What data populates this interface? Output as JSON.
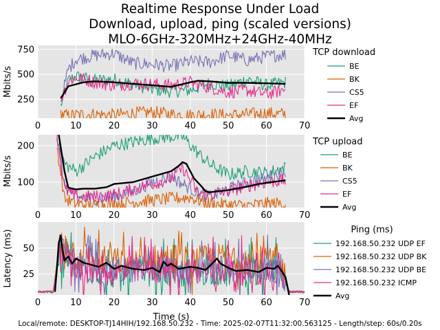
{
  "chart_data": {
    "type": "line",
    "title": [
      "Realtime Response Under Load",
      "Download, upload, ping (scaled versions)",
      "MLO-6GHz-320MHz+24GHz-40MHz"
    ],
    "footer": "Local/remote: DESKTOP-TJ14HIH/192.168.50.232 - Time: 2025-02-07T11:32:00.563125 - Length/step: 60s/0.20s",
    "colors": {
      "BE": "#1b9e77",
      "BK": "#d95f02",
      "CS5": "#7570b3",
      "EF": "#e7298a",
      "Avg": "#000000"
    },
    "panels": [
      {
        "name": "download",
        "ylabel": "Mbits/s",
        "xlabel": "",
        "xlim": [
          0,
          70
        ],
        "ylim": [
          60,
          790
        ],
        "xticks": [
          0,
          10,
          20,
          30,
          40,
          50,
          60,
          70
        ],
        "yticks": [
          250,
          500,
          750
        ],
        "legend_title": "TCP download",
        "series": [
          {
            "name": "BE",
            "color": "#1b9e77",
            "x": [
              6,
              8,
              10,
              15,
              20,
              25,
              30,
              35,
              40,
              45,
              50,
              55,
              60,
              65
            ],
            "y": [
              180,
              440,
              480,
              440,
              450,
              400,
              350,
              330,
              340,
              410,
              380,
              450,
              390,
              420
            ]
          },
          {
            "name": "BK",
            "color": "#d95f02",
            "x": [
              6,
              8,
              10,
              15,
              20,
              25,
              30,
              35,
              40,
              45,
              50,
              55,
              60,
              65
            ],
            "y": [
              110,
              80,
              95,
              100,
              90,
              110,
              120,
              100,
              90,
              100,
              90,
              100,
              110,
              100
            ]
          },
          {
            "name": "CS5",
            "color": "#7570b3",
            "x": [
              6,
              8,
              10,
              15,
              20,
              25,
              30,
              35,
              40,
              45,
              50,
              55,
              60,
              65
            ],
            "y": [
              220,
              550,
              650,
              690,
              710,
              610,
              600,
              580,
              630,
              620,
              690,
              640,
              680,
              700
            ]
          },
          {
            "name": "EF",
            "color": "#e7298a",
            "x": [
              6,
              8,
              10,
              15,
              20,
              25,
              30,
              35,
              40,
              45,
              50,
              55,
              60,
              65
            ],
            "y": [
              240,
              430,
              470,
              420,
              390,
              410,
              400,
              390,
              420,
              370,
              320,
              340,
              300,
              350
            ]
          },
          {
            "name": "Avg",
            "color": "#000000",
            "x": [
              6,
              8,
              10,
              12,
              15,
              20,
              25,
              30,
              35,
              40,
              42,
              45,
              50,
              55,
              60,
              65
            ],
            "y": [
              260,
              380,
              400,
              420,
              430,
              420,
              405,
              390,
              375,
              420,
              435,
              430,
              415,
              415,
              410,
              405
            ]
          }
        ]
      },
      {
        "name": "upload",
        "ylabel": "Mbits/s",
        "xlabel": "",
        "xlim": [
          0,
          70
        ],
        "ylim": [
          30,
          230
        ],
        "xticks": [
          0,
          10,
          20,
          30,
          40,
          50,
          60,
          70
        ],
        "yticks": [
          100,
          200
        ],
        "legend_title": "TCP upload",
        "series": [
          {
            "name": "BE",
            "color": "#1b9e77",
            "x": [
              5,
              7,
              10,
              15,
              20,
              25,
              30,
              35,
              38,
              42,
              45,
              50,
              55,
              60,
              65
            ],
            "y": [
              230,
              150,
              130,
              170,
              200,
              210,
              220,
              225,
              225,
              180,
              150,
              120,
              130,
              125,
              140
            ]
          },
          {
            "name": "BK",
            "color": "#d95f02",
            "x": [
              5,
              7,
              10,
              15,
              20,
              25,
              30,
              35,
              40,
              45,
              50,
              55,
              60,
              65
            ],
            "y": [
              200,
              55,
              40,
              38,
              40,
              45,
              50,
              55,
              58,
              40,
              38,
              35,
              42,
              40
            ]
          },
          {
            "name": "CS5",
            "color": "#7570b3",
            "x": [
              5,
              7,
              10,
              15,
              20,
              25,
              30,
              35,
              38,
              42,
              45,
              50,
              55,
              60,
              65
            ],
            "y": [
              230,
              90,
              60,
              55,
              60,
              75,
              100,
              115,
              95,
              70,
              60,
              80,
              100,
              110,
              130
            ]
          },
          {
            "name": "EF",
            "color": "#e7298a",
            "x": [
              5,
              7,
              10,
              15,
              20,
              25,
              30,
              35,
              38,
              42,
              45,
              50,
              55,
              60,
              65
            ],
            "y": [
              230,
              80,
              60,
              60,
              65,
              80,
              95,
              110,
              140,
              70,
              65,
              75,
              90,
              100,
              105
            ]
          },
          {
            "name": "Avg",
            "color": "#000000",
            "x": [
              5.5,
              7,
              8,
              10,
              12,
              15,
              18,
              20,
              25,
              30,
              35,
              37,
              38,
              39,
              41,
              43,
              44,
              45,
              50,
              55,
              58,
              60,
              62,
              65
            ],
            "y": [
              230,
              130,
              85,
              80,
              82,
              82,
              86,
              95,
              100,
              115,
              130,
              145,
              155,
              150,
              110,
              88,
              75,
              72,
              78,
              88,
              95,
              98,
              101,
              105
            ]
          }
        ]
      },
      {
        "name": "ping",
        "ylabel": "Latency (ms)",
        "xlabel": "Time (s)",
        "xlim": [
          0,
          70
        ],
        "ylim": [
          5,
          75
        ],
        "xticks": [
          0,
          10,
          20,
          30,
          40,
          50,
          60,
          70
        ],
        "yticks": [
          25,
          50
        ],
        "legend_title": "Ping (ms)",
        "series": [
          {
            "name": "192.168.50.232 UDP EF",
            "color": "#1b9e77",
            "x": [
              0,
              4,
              6,
              10,
              15,
              20,
              25,
              30,
              35,
              40,
              45,
              50,
              55,
              60,
              64,
              66,
              70
            ],
            "y": [
              8,
              8,
              40,
              30,
              28,
              25,
              26,
              27,
              24,
              26,
              28,
              25,
              26,
              27,
              25,
              8,
              8
            ]
          },
          {
            "name": "192.168.50.232 UDP BK",
            "color": "#d95f02",
            "x": [
              0,
              4,
              6,
              10,
              15,
              20,
              25,
              30,
              35,
              40,
              45,
              50,
              55,
              60,
              64,
              66,
              70
            ],
            "y": [
              8,
              8,
              60,
              45,
              40,
              38,
              35,
              40,
              42,
              38,
              40,
              42,
              38,
              40,
              35,
              8,
              8
            ]
          },
          {
            "name": "192.168.50.232 UDP BE",
            "color": "#7570b3",
            "x": [
              0,
              4,
              6,
              10,
              15,
              20,
              25,
              30,
              35,
              40,
              45,
              50,
              55,
              60,
              64,
              66,
              70
            ],
            "y": [
              8,
              8,
              55,
              35,
              30,
              28,
              30,
              32,
              30,
              28,
              30,
              31,
              29,
              30,
              28,
              8,
              8
            ]
          },
          {
            "name": "192.168.50.232 ICMP",
            "color": "#e7298a",
            "x": [
              0,
              4,
              6,
              10,
              15,
              20,
              25,
              30,
              35,
              40,
              45,
              50,
              55,
              60,
              64,
              66,
              70
            ],
            "y": [
              8,
              8,
              50,
              32,
              28,
              26,
              28,
              30,
              28,
              27,
              30,
              29,
              27,
              28,
              26,
              8,
              8
            ]
          },
          {
            "name": "Avg",
            "color": "#000000",
            "x": [
              4.5,
              5,
              5.5,
              6,
              6.5,
              7,
              8,
              9,
              10,
              12,
              14,
              16,
              18,
              20,
              22,
              25,
              28,
              30,
              32,
              33,
              34,
              35,
              37,
              40,
              42,
              44,
              46,
              47,
              48,
              50,
              52,
              55,
              58,
              60,
              62,
              63,
              64,
              65,
              66
            ],
            "y": [
              8,
              30,
              55,
              62,
              48,
              38,
              42,
              35,
              40,
              36,
              34,
              32,
              36,
              30,
              33,
              30,
              29,
              31,
              27,
              37,
              33,
              35,
              30,
              32,
              31,
              29,
              36,
              40,
              35,
              31,
              28,
              29,
              27,
              31,
              30,
              33,
              28,
              22,
              4
            ]
          }
        ]
      }
    ]
  }
}
